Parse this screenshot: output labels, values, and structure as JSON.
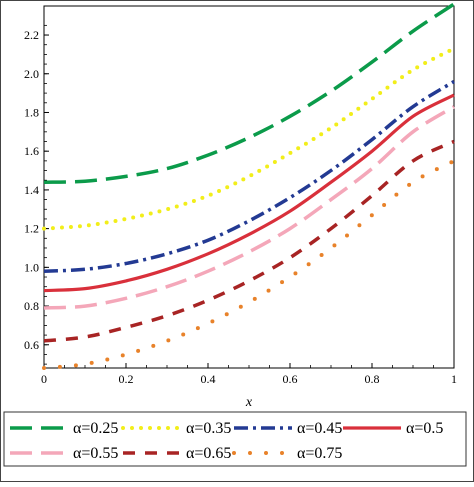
{
  "chart_data": {
    "type": "line",
    "title": "",
    "xlabel": "x",
    "ylabel": "",
    "xlim": [
      0,
      1
    ],
    "ylim": [
      0.48,
      2.35
    ],
    "x_ticks": [
      "0",
      "0.2",
      "0.4",
      "0.6",
      "0.8",
      "1"
    ],
    "y_ticks": [
      "0.6",
      "0.8",
      "1.0",
      "1.2",
      "1.4",
      "1.6",
      "1.8",
      "2.0",
      "2.2"
    ],
    "grid": false,
    "legend_position": "bottom",
    "x": [
      0,
      0.1,
      0.2,
      0.3,
      0.4,
      0.5,
      0.6,
      0.7,
      0.8,
      0.9,
      1.0
    ],
    "series": [
      {
        "name": "α=0.25",
        "color": "#0b9b4a",
        "style": "long-dash",
        "values": [
          1.44,
          1.445,
          1.47,
          1.51,
          1.58,
          1.67,
          1.78,
          1.91,
          2.06,
          2.22,
          2.36
        ]
      },
      {
        "name": "α=0.35",
        "color": "#f2ee1a",
        "style": "dotted",
        "values": [
          1.2,
          1.215,
          1.25,
          1.3,
          1.37,
          1.47,
          1.59,
          1.72,
          1.87,
          2.02,
          2.13
        ]
      },
      {
        "name": "α=0.45",
        "color": "#233a93",
        "style": "dash-dot",
        "values": [
          0.98,
          0.99,
          1.02,
          1.07,
          1.14,
          1.24,
          1.36,
          1.5,
          1.66,
          1.83,
          1.96
        ]
      },
      {
        "name": "α=0.5",
        "color": "#d9303b",
        "style": "solid",
        "values": [
          0.88,
          0.89,
          0.93,
          0.99,
          1.07,
          1.17,
          1.29,
          1.44,
          1.6,
          1.78,
          1.89
        ]
      },
      {
        "name": "α=0.55",
        "color": "#f4a7b9",
        "style": "long-dash",
        "values": [
          0.79,
          0.8,
          0.84,
          0.9,
          0.98,
          1.08,
          1.2,
          1.35,
          1.51,
          1.7,
          1.83
        ]
      },
      {
        "name": "α=0.65",
        "color": "#a82424",
        "style": "dash",
        "values": [
          0.62,
          0.64,
          0.69,
          0.75,
          0.83,
          0.93,
          1.05,
          1.2,
          1.37,
          1.55,
          1.65
        ]
      },
      {
        "name": "α=0.75",
        "color": "#e8822a",
        "style": "dotted-sparse",
        "values": [
          0.48,
          0.5,
          0.55,
          0.62,
          0.71,
          0.82,
          0.95,
          1.1,
          1.27,
          1.44,
          1.55
        ]
      }
    ]
  }
}
